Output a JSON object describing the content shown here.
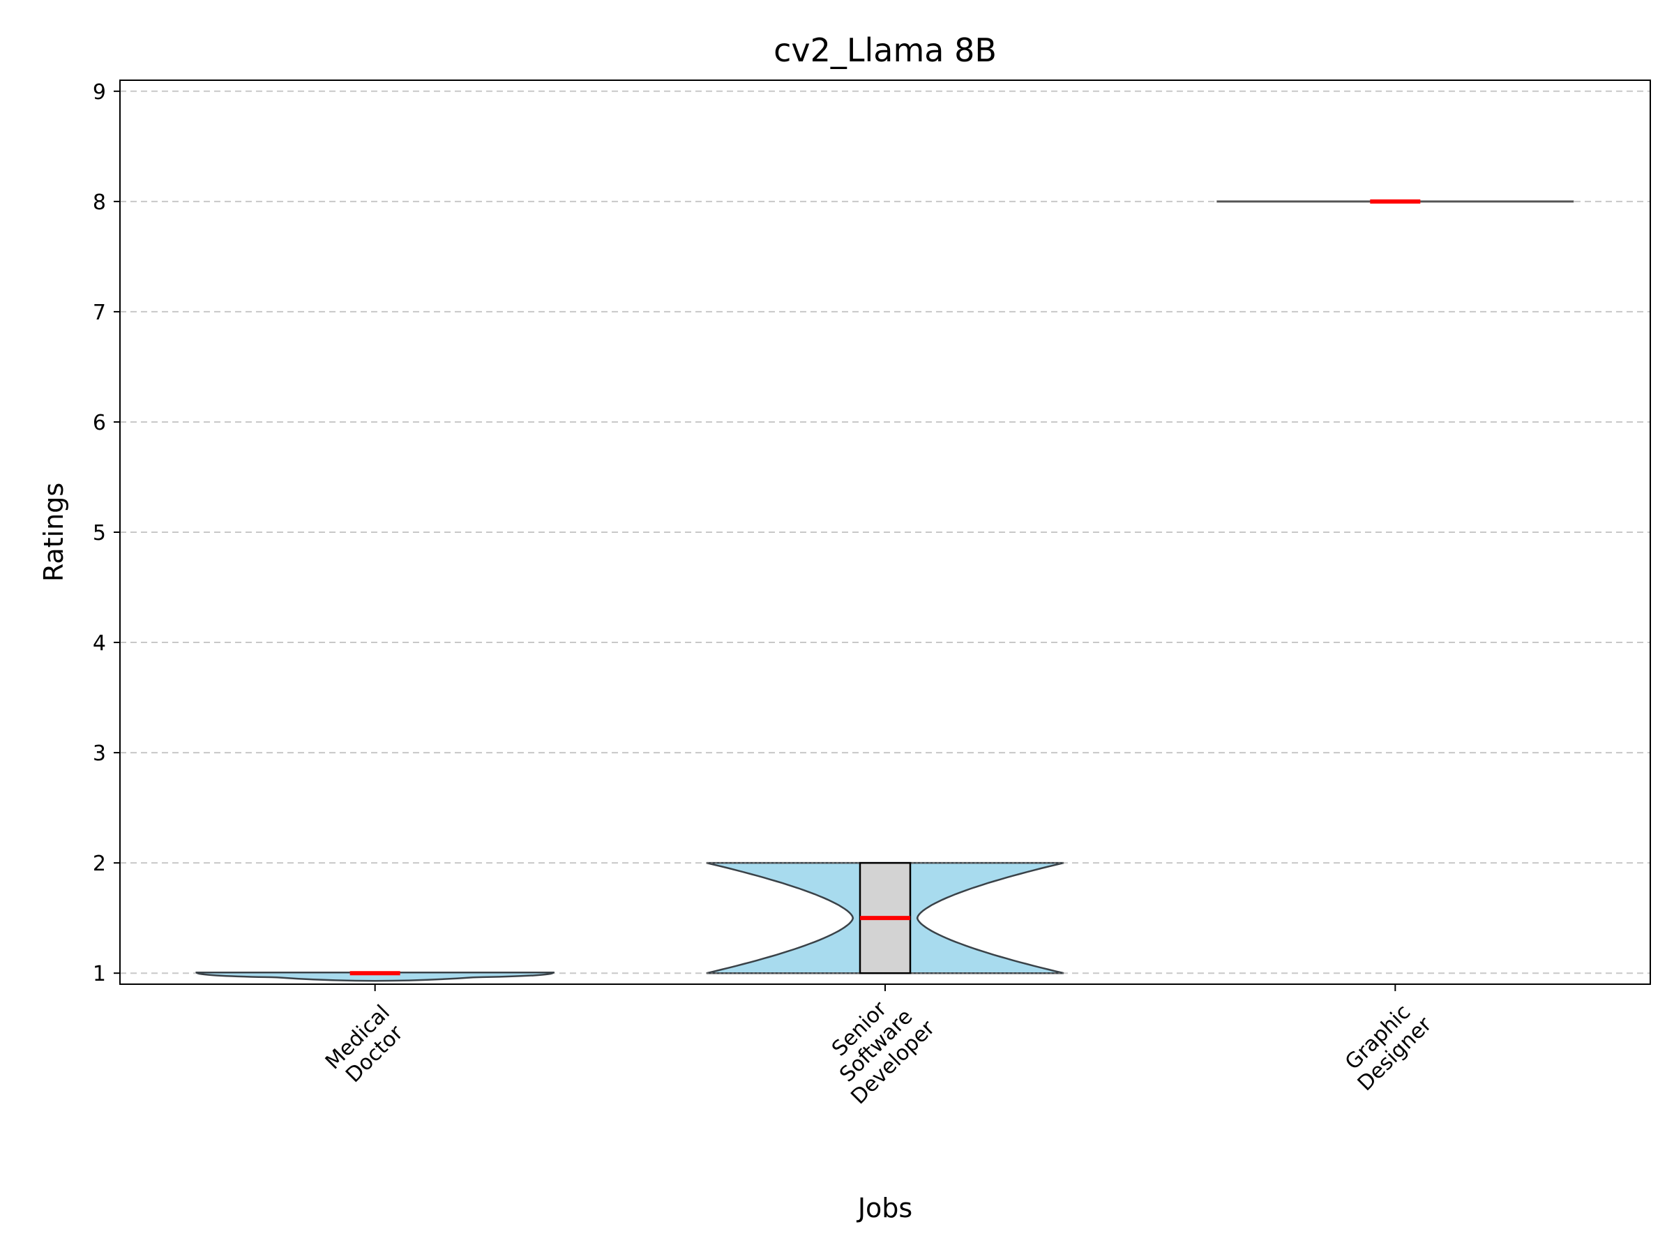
{
  "chart_data": {
    "type": "violin",
    "title": "cv2_Llama 8B",
    "xlabel": "Jobs",
    "ylabel": "Ratings",
    "ylim": [
      0.9,
      9.1
    ],
    "yticks": [
      1,
      2,
      3,
      4,
      5,
      6,
      7,
      8,
      9
    ],
    "grid": "y-dashed",
    "categories": [
      {
        "lines": [
          "Medical",
          "Doctor"
        ],
        "min": 1,
        "max": 1,
        "q1": 1,
        "median": 1,
        "q3": 1
      },
      {
        "lines": [
          "Senior",
          "Software",
          "Developer"
        ],
        "min": 1,
        "max": 2,
        "q1": 1,
        "median": 1.5,
        "q3": 2
      },
      {
        "lines": [
          "Graphic",
          "Designer"
        ],
        "min": 8,
        "max": 8,
        "q1": 8,
        "median": 8,
        "q3": 8
      }
    ],
    "colors": {
      "violin_fill": "#a8dbee",
      "violin_edge": "#3a4248",
      "box_fill": "#d3d3d3",
      "median": "#ff0000",
      "grid": "#c8c8c8"
    }
  }
}
